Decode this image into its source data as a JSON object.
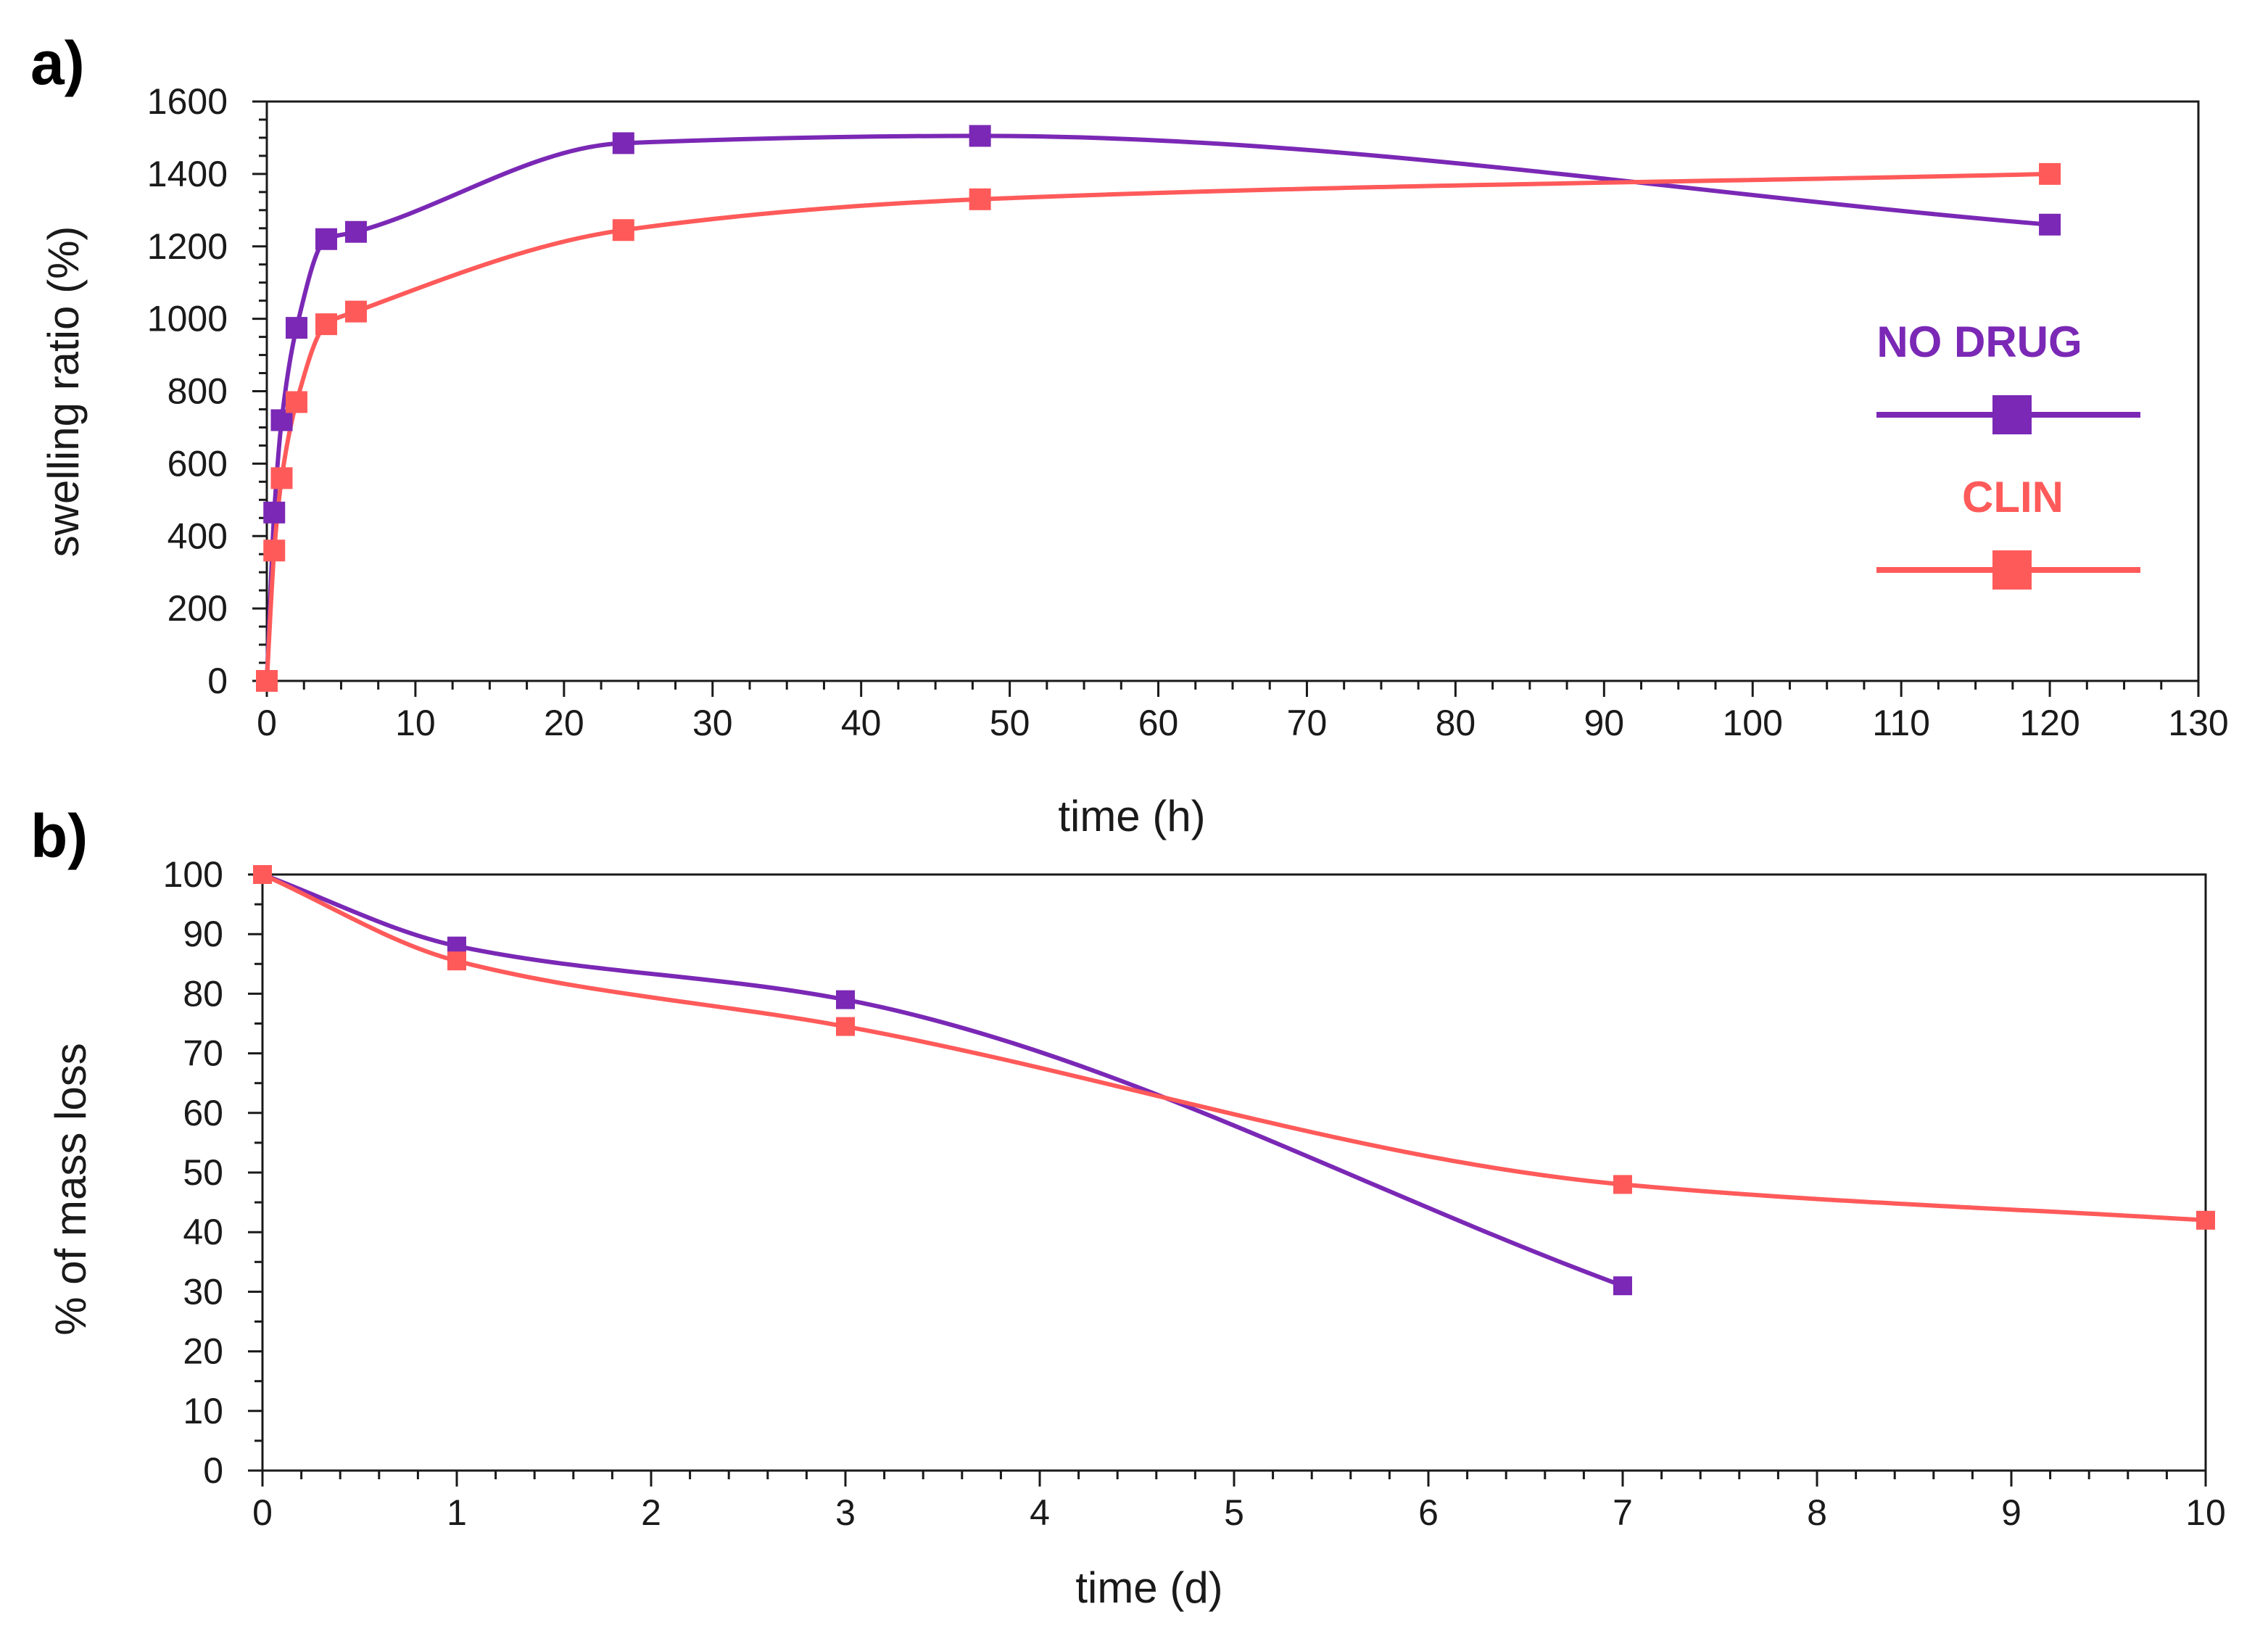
{
  "chart_data": [
    {
      "panel_label": "a)",
      "type": "line",
      "xlabel": "time (h)",
      "ylabel": "swelling ratio (%)",
      "xlim": [
        0,
        130
      ],
      "ylim": [
        0,
        1600
      ],
      "x_ticks": [
        "0",
        "10",
        "20",
        "30",
        "40",
        "50",
        "60",
        "70",
        "80",
        "90",
        "100",
        "110",
        "120",
        "130"
      ],
      "y_ticks": [
        "0",
        "200",
        "400",
        "600",
        "800",
        "1000",
        "1200",
        "1400",
        "1600"
      ],
      "legend": [
        {
          "label": "NO DRUG",
          "color": "#7a28b5"
        },
        {
          "label": "CLIN",
          "color": "#ff5a5a"
        }
      ],
      "series": [
        {
          "name": "NO DRUG",
          "color": "#7a28b5",
          "x": [
            0,
            0.5,
            1,
            2,
            4,
            6,
            24,
            48,
            120
          ],
          "y": [
            0,
            465,
            720,
            975,
            1220,
            1240,
            1485,
            1505,
            1260
          ]
        },
        {
          "name": "CLIN",
          "color": "#ff5a5a",
          "x": [
            0,
            0.5,
            1,
            2,
            4,
            6,
            24,
            48,
            120
          ],
          "y": [
            0,
            360,
            560,
            770,
            985,
            1020,
            1245,
            1330,
            1400
          ]
        }
      ]
    },
    {
      "panel_label": "b)",
      "type": "line",
      "xlabel": "time (d)",
      "ylabel": "% of mass loss",
      "xlim": [
        0,
        10
      ],
      "ylim": [
        0,
        100
      ],
      "x_ticks": [
        "0",
        "1",
        "2",
        "3",
        "4",
        "5",
        "6",
        "7",
        "8",
        "9",
        "10"
      ],
      "y_ticks": [
        "0",
        "10",
        "20",
        "30",
        "40",
        "50",
        "60",
        "70",
        "80",
        "90",
        "100"
      ],
      "series": [
        {
          "name": "NO DRUG",
          "color": "#7a28b5",
          "x": [
            0,
            1,
            3,
            7
          ],
          "y": [
            100,
            88,
            79,
            31
          ]
        },
        {
          "name": "CLIN",
          "color": "#ff5a5a",
          "x": [
            0,
            1,
            3,
            7,
            10
          ],
          "y": [
            100,
            85.5,
            74.5,
            48,
            42
          ]
        }
      ]
    }
  ]
}
